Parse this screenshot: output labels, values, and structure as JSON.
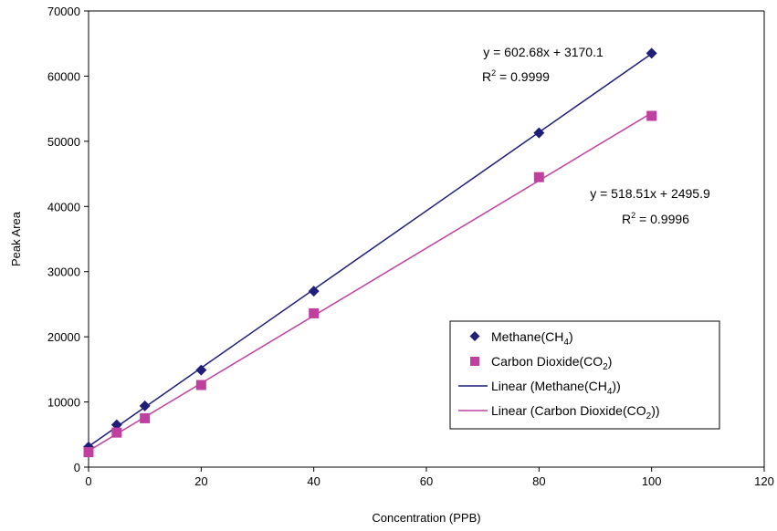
{
  "chart_data": {
    "type": "scatter",
    "xlabel": "Concentration (PPB)",
    "ylabel": "Peak Area",
    "xlim": [
      0,
      120
    ],
    "ylim": [
      0,
      70000
    ],
    "x_ticks": [
      "0",
      "20",
      "40",
      "60",
      "80",
      "100",
      "120"
    ],
    "y_ticks": [
      "0",
      "10000",
      "20000",
      "30000",
      "40000",
      "50000",
      "60000",
      "70000"
    ],
    "grid": false,
    "legend_position": "right",
    "series": [
      {
        "name": "Methane(CH4)",
        "legend_main": "Methane(CH",
        "legend_sub": "4",
        "legend_after": ")",
        "marker": "diamond",
        "color": "#1f1f7a",
        "x": [
          0,
          5,
          10,
          20,
          40,
          80,
          100
        ],
        "y": [
          3100,
          6500,
          9400,
          14900,
          27000,
          51300,
          63500
        ]
      },
      {
        "name": "Carbon Dioxide(CO2)",
        "legend_main": "Carbon Dioxide(CO",
        "legend_sub": "2",
        "legend_after": ")",
        "marker": "square",
        "color": "#c040a0",
        "x": [
          0,
          5,
          10,
          20,
          40,
          80,
          100
        ],
        "y": [
          2300,
          5300,
          7500,
          12600,
          23600,
          44500,
          53900
        ]
      }
    ],
    "trendlines": [
      {
        "name": "Linear (Methane(CH4))",
        "legend_main": "Linear (Methane(CH",
        "legend_sub": "4",
        "legend_after": "))",
        "color": "#1f1f7a",
        "slope": 602.68,
        "intercept": 3170.1,
        "x_range": [
          0,
          100
        ],
        "equation": "y = 602.68x + 3170.1",
        "r2_label": "R",
        "r2_exp": "2",
        "r2_value": " = 0.9999"
      },
      {
        "name": "Linear (Carbon Dioxide(CO2))",
        "legend_main": "Linear (Carbon Dioxide(CO",
        "legend_sub": "2",
        "legend_after": "))",
        "color": "#c040a0",
        "slope": 518.51,
        "intercept": 2495.9,
        "x_range": [
          0,
          100
        ],
        "equation": "y = 518.51x + 2495.9",
        "r2_label": "R",
        "r2_exp": "2",
        "r2_value": " = 0.9996"
      }
    ]
  }
}
